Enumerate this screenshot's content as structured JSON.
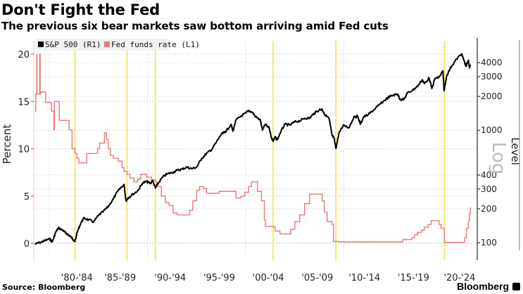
{
  "header": {
    "title": "Don't Fight the Fed",
    "subtitle": "The previous six bear markets saw bottom arriving amid Fed cuts"
  },
  "footer": {
    "source": "Source: Bloomberg",
    "brand": "Bloomberg"
  },
  "colors": {
    "sp500": "#000000",
    "fed": "#e8777a",
    "highlight": "#f3ea6a",
    "grid": "#dcdcdc",
    "left_axis": "#e8777a",
    "right_axis": "#555555"
  },
  "chart_data": {
    "type": "line",
    "title": "Don't Fight the Fed",
    "subtitle": "The previous six bear markets saw bottom arriving amid Fed cuts",
    "legend": [
      {
        "label": "S&P 500 (R1)",
        "color": "#000000"
      },
      {
        "label": "Fed funds rate (L1)",
        "color": "#e8777a"
      }
    ],
    "legend_position": "top-left",
    "left_axis": {
      "label": "Percent",
      "ticks": [
        0,
        5,
        10,
        15,
        20
      ],
      "range": [
        -0.8,
        21.5
      ]
    },
    "right_axis": {
      "label": "Level",
      "secondary_label": "Log",
      "scale": "log",
      "ticks": [
        100,
        200,
        300,
        400,
        1000,
        2000,
        3000,
        4000
      ],
      "range": [
        85,
        6500
      ]
    },
    "x_axis": {
      "range": [
        1978.4,
        2023.6
      ],
      "tick_labels": [
        "'80-'84",
        "'85-'89",
        "'90-'94",
        "'95-'99",
        "'00-'04",
        "'05-'09",
        "'10-'14",
        "'15-'19",
        "'20-'24"
      ],
      "tick_label_years": [
        1982.8,
        1987.2,
        1992.3,
        1997.3,
        2002.3,
        2007.3,
        2012.1,
        2017.1,
        2021.8
      ],
      "grid_years": [
        1980,
        1990,
        2000,
        2010,
        2020
      ]
    },
    "highlight_years": [
      1982.6,
      1987.9,
      1990.8,
      2002.8,
      2009.2,
      2020.25
    ],
    "grid": true,
    "series": [
      {
        "name": "Fed funds rate (L1)",
        "axis": "left",
        "points": [
          [
            1978.5,
            14.0
          ],
          [
            1978.6,
            15.8
          ],
          [
            1978.7,
            20.0
          ],
          [
            1978.72,
            15.8
          ],
          [
            1978.9,
            15.8
          ],
          [
            1979.0,
            20.0
          ],
          [
            1979.05,
            15.8
          ],
          [
            1979.1,
            16.0
          ],
          [
            1979.5,
            16.0
          ],
          [
            1979.6,
            14.9
          ],
          [
            1980.1,
            14.9
          ],
          [
            1980.2,
            14.0
          ],
          [
            1980.4,
            14.0
          ],
          [
            1980.45,
            12.0
          ],
          [
            1980.5,
            15.0
          ],
          [
            1980.9,
            15.0
          ],
          [
            1981.0,
            13.0
          ],
          [
            1981.5,
            13.0
          ],
          [
            1982.0,
            12.0
          ],
          [
            1982.3,
            10.0
          ],
          [
            1982.6,
            9.5
          ],
          [
            1982.8,
            9.0
          ],
          [
            1983.0,
            8.5
          ],
          [
            1983.6,
            8.5
          ],
          [
            1983.8,
            9.5
          ],
          [
            1984.0,
            9.5
          ],
          [
            1984.5,
            9.5
          ],
          [
            1984.9,
            10.0
          ],
          [
            1985.1,
            10.6
          ],
          [
            1985.4,
            10.6
          ],
          [
            1985.6,
            11.7
          ],
          [
            1985.8,
            11.0
          ],
          [
            1986.0,
            10.0
          ],
          [
            1986.2,
            9.3
          ],
          [
            1986.5,
            9.0
          ],
          [
            1987.0,
            8.7
          ],
          [
            1987.4,
            8.0
          ],
          [
            1987.6,
            7.6
          ],
          [
            1987.9,
            7.3
          ],
          [
            1988.2,
            6.9
          ],
          [
            1988.6,
            6.5
          ],
          [
            1989.0,
            6.8
          ],
          [
            1989.3,
            7.3
          ],
          [
            1989.6,
            7.3
          ],
          [
            1989.9,
            7.0
          ],
          [
            1990.4,
            6.7
          ],
          [
            1990.8,
            6.5
          ],
          [
            1991.0,
            6.0
          ],
          [
            1991.4,
            5.0
          ],
          [
            1991.8,
            4.3
          ],
          [
            1992.2,
            4.0
          ],
          [
            1992.6,
            3.2
          ],
          [
            1993.0,
            3.0
          ],
          [
            1993.6,
            3.0
          ],
          [
            1994.0,
            3.0
          ],
          [
            1994.3,
            3.5
          ],
          [
            1994.6,
            4.5
          ],
          [
            1995.0,
            5.6
          ],
          [
            1995.3,
            6.0
          ],
          [
            1995.7,
            5.8
          ],
          [
            1996.0,
            5.3
          ],
          [
            1996.5,
            5.3
          ],
          [
            1997.0,
            5.3
          ],
          [
            1997.3,
            5.5
          ],
          [
            1998.0,
            5.5
          ],
          [
            1998.7,
            5.5
          ],
          [
            1999.0,
            4.8
          ],
          [
            1999.5,
            5.0
          ],
          [
            1999.9,
            5.4
          ],
          [
            2000.3,
            6.0
          ],
          [
            2000.6,
            6.5
          ],
          [
            2001.0,
            6.5
          ],
          [
            2001.2,
            5.5
          ],
          [
            2001.6,
            4.5
          ],
          [
            2001.9,
            2.5
          ],
          [
            2002.0,
            1.8
          ],
          [
            2002.8,
            1.7
          ],
          [
            2003.0,
            1.3
          ],
          [
            2003.5,
            1.0
          ],
          [
            2004.4,
            1.0
          ],
          [
            2004.6,
            1.5
          ],
          [
            2005.0,
            2.3
          ],
          [
            2005.5,
            3.0
          ],
          [
            2006.0,
            4.2
          ],
          [
            2006.5,
            5.2
          ],
          [
            2007.5,
            5.2
          ],
          [
            2007.8,
            4.5
          ],
          [
            2008.0,
            3.3
          ],
          [
            2008.3,
            2.3
          ],
          [
            2008.8,
            2.0
          ],
          [
            2008.95,
            0.2
          ],
          [
            2009.5,
            0.15
          ],
          [
            2012.0,
            0.15
          ],
          [
            2015.9,
            0.15
          ],
          [
            2016.0,
            0.4
          ],
          [
            2016.9,
            0.6
          ],
          [
            2017.2,
            0.9
          ],
          [
            2017.5,
            1.15
          ],
          [
            2017.9,
            1.4
          ],
          [
            2018.2,
            1.7
          ],
          [
            2018.6,
            2.0
          ],
          [
            2018.9,
            2.4
          ],
          [
            2019.4,
            2.4
          ],
          [
            2019.7,
            2.0
          ],
          [
            2019.9,
            1.6
          ],
          [
            2020.15,
            1.6
          ],
          [
            2020.25,
            0.1
          ],
          [
            2021.5,
            0.1
          ],
          [
            2022.2,
            0.1
          ],
          [
            2022.3,
            0.6
          ],
          [
            2022.5,
            1.6
          ],
          [
            2022.7,
            2.3
          ],
          [
            2022.8,
            3.1
          ],
          [
            2022.9,
            3.8
          ]
        ]
      },
      {
        "name": "S&P 500 (R1)",
        "axis": "right",
        "points": [
          [
            1978.5,
            97
          ],
          [
            1979.0,
            100
          ],
          [
            1979.5,
            104
          ],
          [
            1980.0,
            108
          ],
          [
            1980.3,
            102
          ],
          [
            1980.6,
            122
          ],
          [
            1980.9,
            135
          ],
          [
            1981.3,
            130
          ],
          [
            1981.6,
            123
          ],
          [
            1981.9,
            118
          ],
          [
            1982.2,
            112
          ],
          [
            1982.5,
            105
          ],
          [
            1982.6,
            102
          ],
          [
            1982.8,
            122
          ],
          [
            1983.2,
            150
          ],
          [
            1983.5,
            165
          ],
          [
            1984.0,
            160
          ],
          [
            1984.5,
            153
          ],
          [
            1985.0,
            175
          ],
          [
            1985.5,
            190
          ],
          [
            1986.0,
            210
          ],
          [
            1986.5,
            245
          ],
          [
            1987.0,
            290
          ],
          [
            1987.6,
            330
          ],
          [
            1987.8,
            235
          ],
          [
            1988.0,
            250
          ],
          [
            1988.5,
            270
          ],
          [
            1989.0,
            290
          ],
          [
            1989.5,
            340
          ],
          [
            1989.9,
            350
          ],
          [
            1990.3,
            335
          ],
          [
            1990.5,
            360
          ],
          [
            1990.8,
            305
          ],
          [
            1991.0,
            330
          ],
          [
            1991.5,
            380
          ],
          [
            1992.0,
            410
          ],
          [
            1992.5,
            420
          ],
          [
            1993.0,
            440
          ],
          [
            1993.5,
            450
          ],
          [
            1994.0,
            470
          ],
          [
            1994.5,
            455
          ],
          [
            1995.0,
            470
          ],
          [
            1995.5,
            560
          ],
          [
            1996.0,
            620
          ],
          [
            1996.5,
            670
          ],
          [
            1997.0,
            780
          ],
          [
            1997.5,
            920
          ],
          [
            1997.8,
            950
          ],
          [
            1998.0,
            980
          ],
          [
            1998.5,
            1130
          ],
          [
            1998.7,
            980
          ],
          [
            1999.0,
            1230
          ],
          [
            1999.5,
            1330
          ],
          [
            2000.0,
            1420
          ],
          [
            2000.3,
            1500
          ],
          [
            2000.7,
            1440
          ],
          [
            2001.0,
            1320
          ],
          [
            2001.5,
            1230
          ],
          [
            2001.7,
            1000
          ],
          [
            2002.0,
            1130
          ],
          [
            2002.4,
            1050
          ],
          [
            2002.6,
            870
          ],
          [
            2002.8,
            800
          ],
          [
            2003.0,
            870
          ],
          [
            2003.2,
            820
          ],
          [
            2003.6,
            980
          ],
          [
            2004.0,
            1130
          ],
          [
            2004.5,
            1110
          ],
          [
            2005.0,
            1190
          ],
          [
            2005.5,
            1210
          ],
          [
            2006.0,
            1280
          ],
          [
            2006.5,
            1280
          ],
          [
            2007.0,
            1420
          ],
          [
            2007.5,
            1520
          ],
          [
            2007.8,
            1540
          ],
          [
            2008.0,
            1400
          ],
          [
            2008.5,
            1270
          ],
          [
            2008.8,
            900
          ],
          [
            2009.0,
            850
          ],
          [
            2009.2,
            690
          ],
          [
            2009.5,
            940
          ],
          [
            2010.0,
            1120
          ],
          [
            2010.5,
            1050
          ],
          [
            2011.0,
            1300
          ],
          [
            2011.4,
            1340
          ],
          [
            2011.7,
            1130
          ],
          [
            2012.0,
            1310
          ],
          [
            2012.5,
            1380
          ],
          [
            2013.0,
            1500
          ],
          [
            2013.5,
            1650
          ],
          [
            2014.0,
            1800
          ],
          [
            2014.5,
            1950
          ],
          [
            2015.0,
            2050
          ],
          [
            2015.5,
            2100
          ],
          [
            2015.7,
            1900
          ],
          [
            2016.1,
            1870
          ],
          [
            2016.5,
            2150
          ],
          [
            2017.0,
            2270
          ],
          [
            2017.5,
            2450
          ],
          [
            2018.0,
            2820
          ],
          [
            2018.2,
            2600
          ],
          [
            2018.7,
            2920
          ],
          [
            2018.97,
            2350
          ],
          [
            2019.3,
            2900
          ],
          [
            2019.7,
            2950
          ],
          [
            2020.1,
            3380
          ],
          [
            2020.22,
            2240
          ],
          [
            2020.5,
            3100
          ],
          [
            2021.0,
            3750
          ],
          [
            2021.5,
            4300
          ],
          [
            2022.0,
            4790
          ],
          [
            2022.2,
            4300
          ],
          [
            2022.45,
            3700
          ],
          [
            2022.7,
            4200
          ],
          [
            2022.8,
            3600
          ],
          [
            2022.9,
            3850
          ]
        ]
      }
    ]
  }
}
